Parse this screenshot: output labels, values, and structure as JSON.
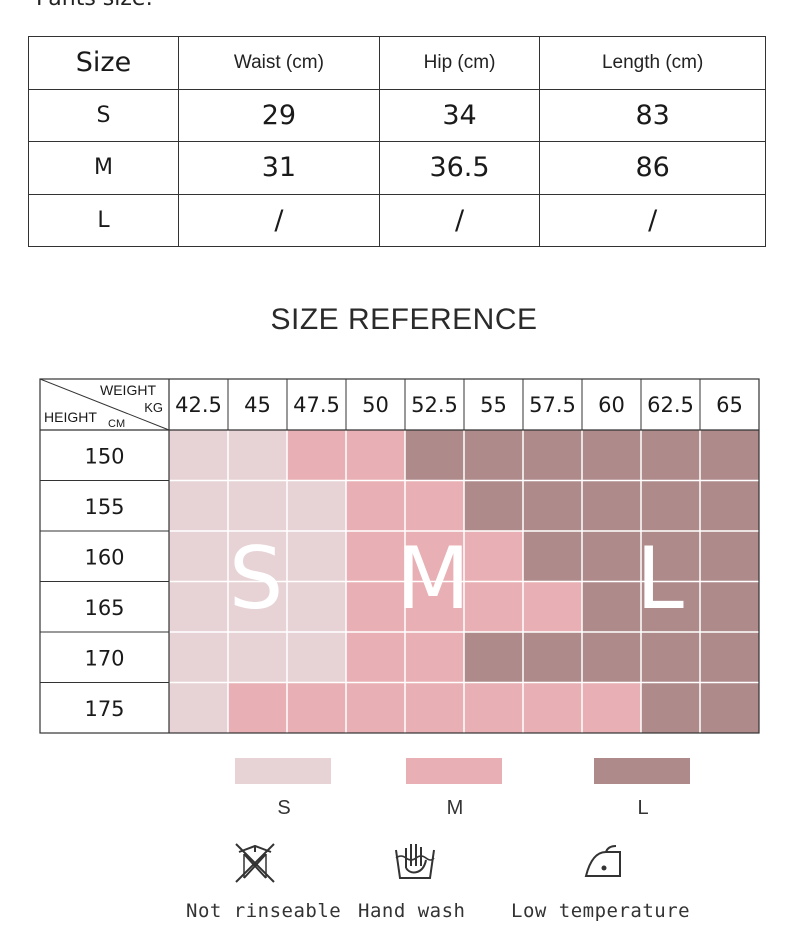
{
  "top_section": {
    "cut_title": "Pants size:"
  },
  "measurements": {
    "headers": [
      "Size",
      "Waist (cm)",
      "Hip (cm)",
      "Length (cm)"
    ],
    "rows": [
      [
        "S",
        "29",
        "34",
        "83"
      ],
      [
        "M",
        "31",
        "36.5",
        "86"
      ],
      [
        "L",
        "/",
        "/",
        "/"
      ]
    ]
  },
  "reference": {
    "title": "SIZE REFERENCE",
    "corner": {
      "weight": "WEIGHT",
      "kg": "KG",
      "height": "HEIGHT",
      "cm": "CM"
    },
    "weights": [
      "42.5",
      "45",
      "47.5",
      "50",
      "52.5",
      "55",
      "57.5",
      "60",
      "62.5",
      "65"
    ],
    "heights": [
      "150",
      "155",
      "160",
      "165",
      "170",
      "175"
    ],
    "cells": [
      [
        "S",
        "S",
        "M",
        "M",
        "L",
        "L",
        "L",
        "L",
        "L",
        "L"
      ],
      [
        "S",
        "S",
        "S",
        "M",
        "M",
        "L",
        "L",
        "L",
        "L",
        "L"
      ],
      [
        "S",
        "S",
        "S",
        "M",
        "M",
        "M",
        "L",
        "L",
        "L",
        "L"
      ],
      [
        "S",
        "S",
        "S",
        "M",
        "M",
        "M",
        "M",
        "L",
        "L",
        "L"
      ],
      [
        "S",
        "S",
        "S",
        "M",
        "M",
        "L",
        "L",
        "L",
        "L",
        "L"
      ],
      [
        "S",
        "M",
        "M",
        "M",
        "M",
        "M",
        "M",
        "M",
        "L",
        "L"
      ]
    ],
    "overlay_letters": [
      "S",
      "M",
      "L"
    ],
    "colors": {
      "S": "#e7d3d6",
      "M": "#e8b0b4",
      "L": "#ae8a8b"
    }
  },
  "legend": [
    {
      "label": "S",
      "color": "#e7d3d6"
    },
    {
      "label": "M",
      "color": "#e8b0b4"
    },
    {
      "label": "L",
      "color": "#ae8a8b"
    }
  ],
  "care": [
    {
      "icon": "no-wring-icon",
      "label": "Not rinseable"
    },
    {
      "icon": "hand-wash-icon",
      "label": "Hand wash"
    },
    {
      "icon": "low-iron-icon",
      "label": "Low temperature"
    }
  ]
}
